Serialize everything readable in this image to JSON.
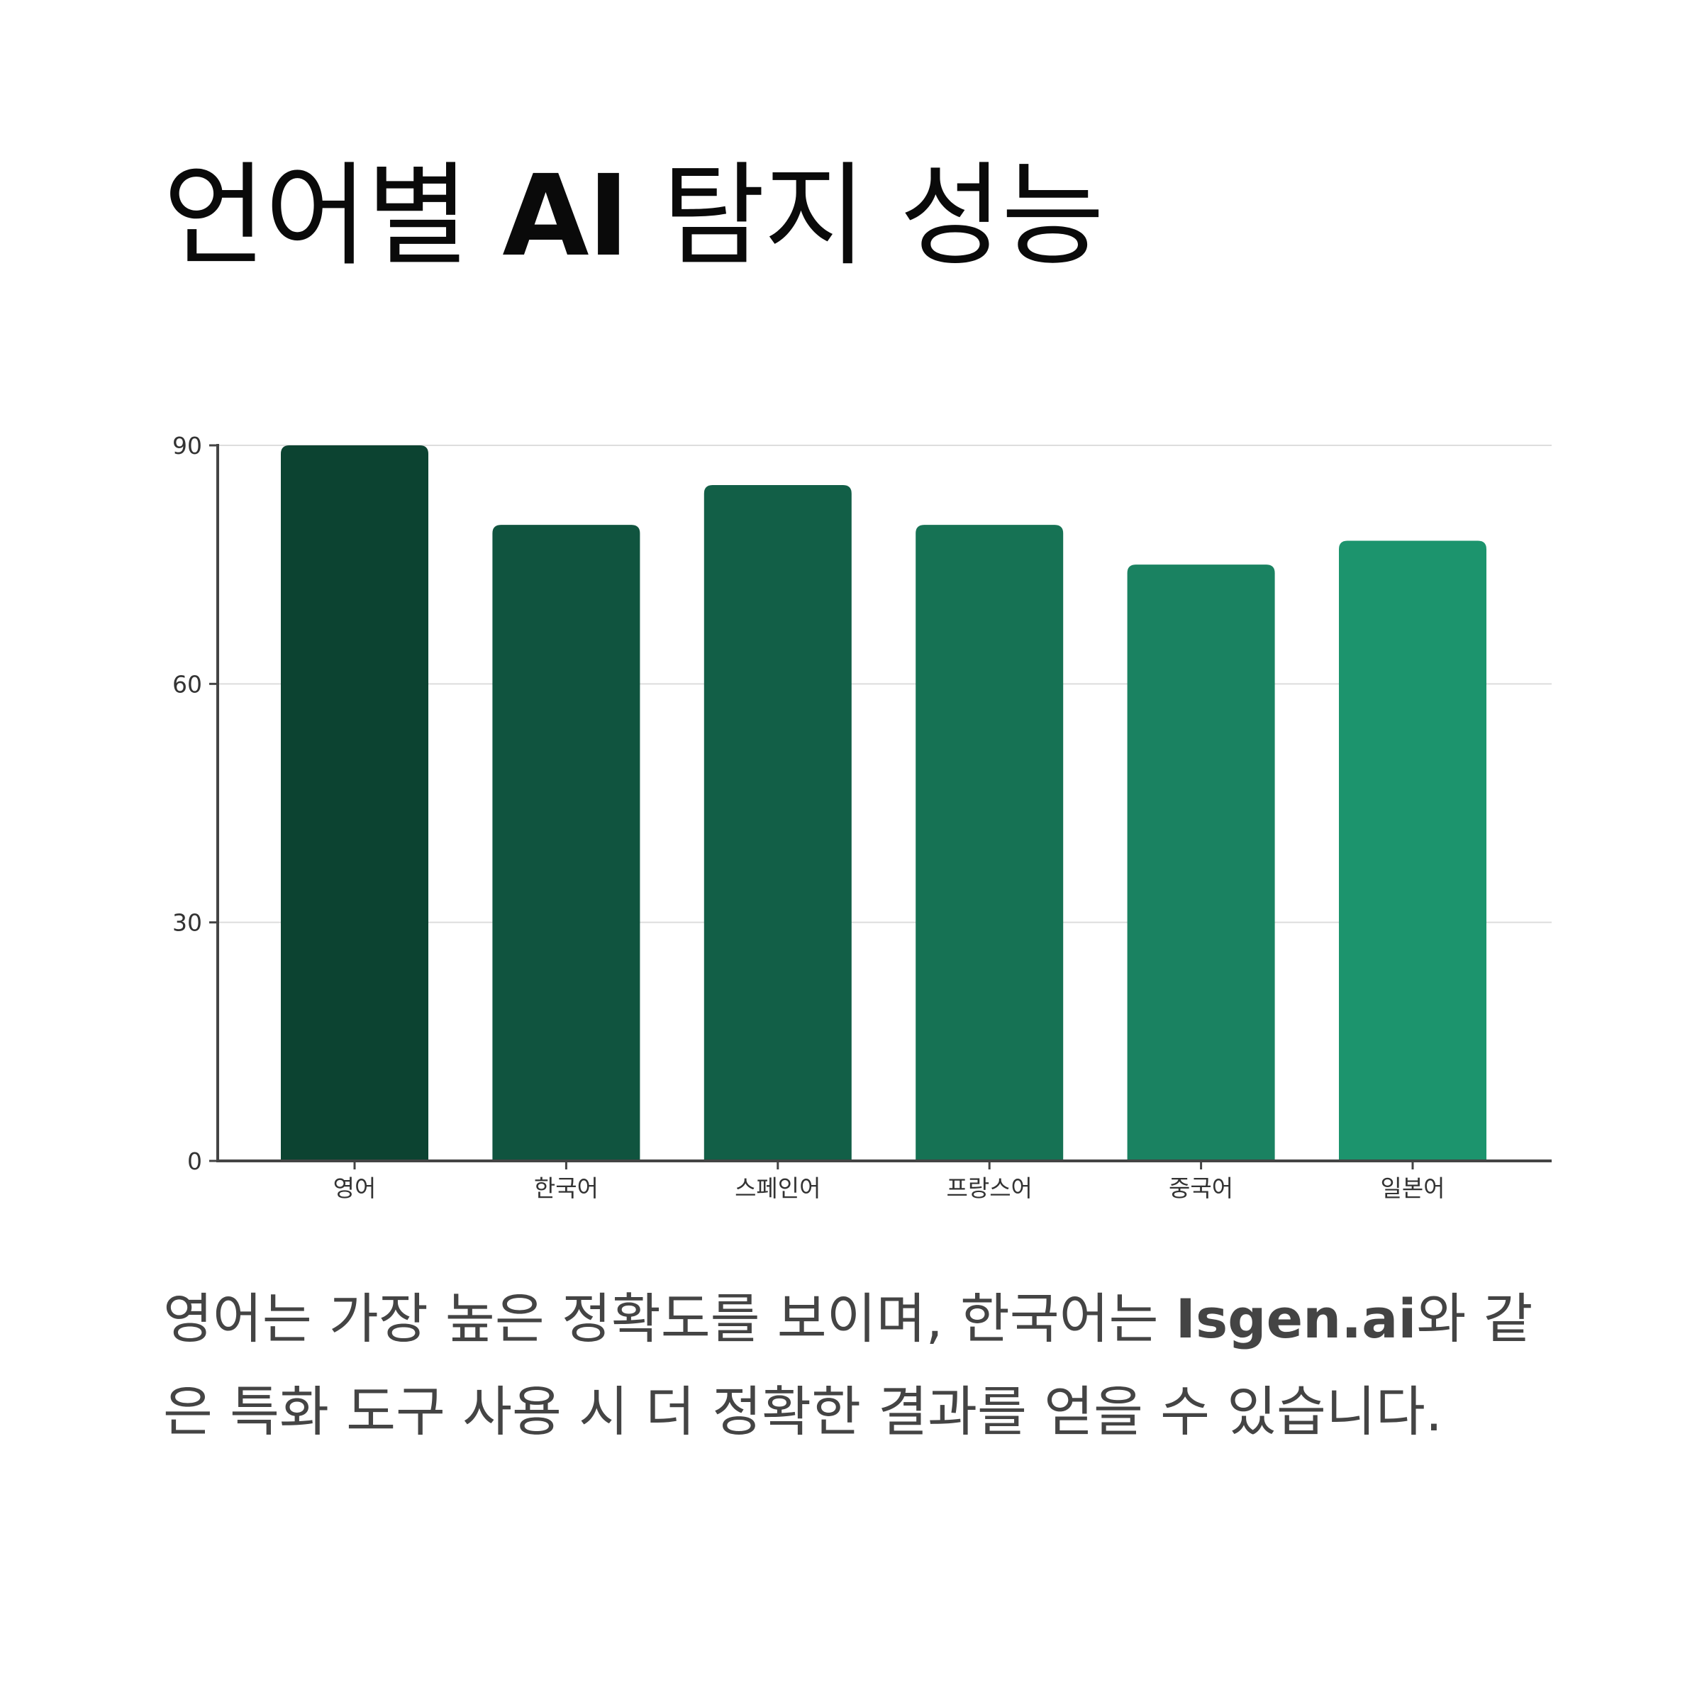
{
  "title": {
    "prefix": "언어별 ",
    "emphasis": "AI",
    "suffix": " 탐지 성능"
  },
  "caption": {
    "before": "영어는 가장 높은 정확도를 보이며, 한국어는 ",
    "brand": "Isgen.ai",
    "after": "와 같은 특화 도구 사용 시 더 정확한 결과를 얻을 수 있습니다."
  },
  "chart_data": {
    "type": "bar",
    "categories": [
      "영어",
      "한국어",
      "스페인어",
      "프랑스어",
      "중국어",
      "일본어"
    ],
    "values": [
      90,
      80,
      85,
      80,
      75,
      78
    ],
    "colors": [
      "#0c4331",
      "#10543f",
      "#125f47",
      "#167254",
      "#1a8261",
      "#1c946d"
    ],
    "yticks": [
      0,
      30,
      60,
      90
    ],
    "ylim": [
      0,
      90
    ],
    "grid": true,
    "legend": "none"
  }
}
